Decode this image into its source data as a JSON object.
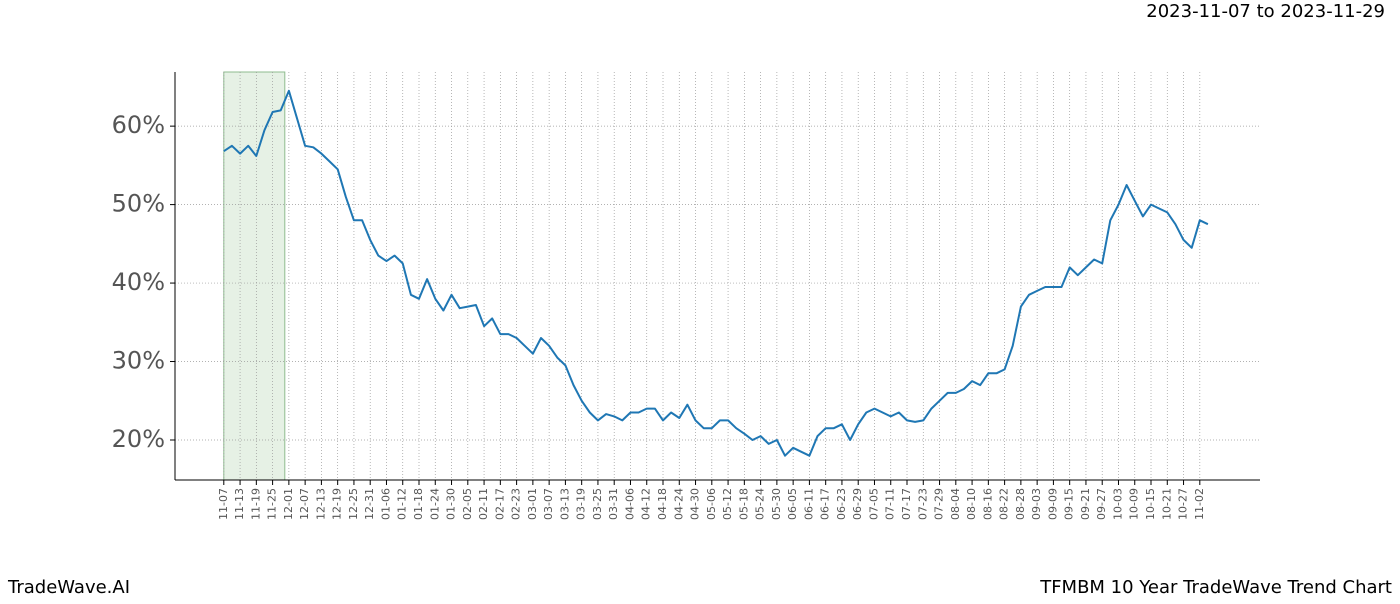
{
  "chart_data": {
    "type": "line",
    "date_range": "2023-11-07 to 2023-11-29",
    "brand": "TradeWave.AI",
    "title": "TFMBM 10 Year TradeWave Trend Chart",
    "categories": [
      "11-07",
      null,
      "11-13",
      null,
      "11-19",
      null,
      "11-25",
      null,
      "12-01",
      null,
      "12-07",
      null,
      "12-13",
      null,
      "12-19",
      null,
      "12-25",
      null,
      "12-31",
      null,
      "01-06",
      null,
      "01-12",
      null,
      "01-18",
      null,
      "01-24",
      null,
      "01-30",
      null,
      "02-05",
      null,
      "02-11",
      null,
      "02-17",
      null,
      "02-23",
      null,
      "03-01",
      null,
      "03-07",
      null,
      "03-13",
      null,
      "03-19",
      null,
      "03-25",
      null,
      "03-31",
      null,
      "04-06",
      null,
      "04-12",
      null,
      "04-18",
      null,
      "04-24",
      null,
      "04-30",
      null,
      "05-06",
      null,
      "05-12",
      null,
      "05-18",
      null,
      "05-24",
      null,
      "05-30",
      null,
      "06-05",
      null,
      "06-11",
      null,
      "06-17",
      null,
      "06-23",
      null,
      "06-29",
      null,
      "07-05",
      null,
      "07-11",
      null,
      "07-17",
      null,
      "07-23",
      null,
      "07-29",
      null,
      "08-04",
      null,
      "08-10",
      null,
      "08-16",
      null,
      "08-22",
      null,
      "08-28",
      null,
      "09-03",
      null,
      "09-09",
      null,
      "09-15",
      null,
      "09-21",
      null,
      "09-27",
      null,
      "10-03",
      null,
      "10-09",
      null,
      "10-15",
      null,
      "10-21",
      null,
      "10-27",
      null,
      "11-02",
      null
    ],
    "values": [
      56.8,
      57.5,
      56.5,
      57.5,
      56.2,
      59.5,
      61.8,
      62,
      64.5,
      61,
      57.5,
      57.3,
      56.5,
      55.5,
      54.5,
      51,
      48,
      48,
      45.5,
      43.5,
      42.8,
      43.5,
      42.5,
      38.5,
      38,
      40.5,
      38,
      36.5,
      38.5,
      36.8,
      37,
      37.2,
      34.5,
      35.5,
      33.5,
      33.5,
      33,
      32,
      31,
      33,
      32,
      30.5,
      29.5,
      27,
      25,
      23.5,
      22.5,
      23.3,
      23,
      22.5,
      23.5,
      23.5,
      24,
      24,
      22.5,
      23.5,
      22.8,
      24.5,
      22.5,
      21.5,
      21.5,
      22.5,
      22.5,
      21.5,
      20.8,
      20,
      20.5,
      19.5,
      20,
      18,
      19,
      18.5,
      18,
      20.5,
      21.5,
      21.5,
      22,
      20,
      22,
      23.5,
      24,
      23.5,
      23,
      23.5,
      22.5,
      22.3,
      22.5,
      24,
      25,
      26,
      26,
      26.5,
      27.5,
      27,
      28.5,
      28.5,
      29,
      32,
      37,
      38.5,
      39,
      39.5,
      39.5,
      39.5,
      42,
      41,
      42,
      43,
      42.5,
      48,
      50,
      52.5,
      50.5,
      48.5,
      50,
      49.5,
      49,
      47.5,
      45.5,
      44.5,
      48,
      47.5
    ],
    "color": "#1f77b4",
    "highlight": [
      0,
      7.5
    ],
    "highlight_color": "#d5e8d4",
    "xlim": [
      -6,
      127.4
    ],
    "ylim": [
      14.9,
      66.9
    ],
    "yticks": [
      {
        "value": 20,
        "label": "20%"
      },
      {
        "value": 30,
        "label": "30%"
      },
      {
        "value": 40,
        "label": "40%"
      },
      {
        "value": 50,
        "label": "50%"
      },
      {
        "value": 60,
        "label": "60%"
      }
    ],
    "grid": true
  }
}
